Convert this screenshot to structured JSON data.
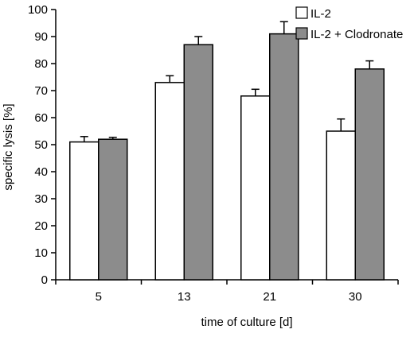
{
  "chart_data": {
    "type": "bar",
    "categories": [
      "5",
      "13",
      "21",
      "30"
    ],
    "series": [
      {
        "name": "IL-2",
        "values": [
          51,
          73,
          68,
          55
        ],
        "errors": [
          2,
          2.5,
          2.5,
          4.5
        ],
        "color": "#ffffff"
      },
      {
        "name": "IL-2 + Clodronate",
        "values": [
          52,
          87,
          91,
          78
        ],
        "errors": [
          0.7,
          3,
          4.5,
          3
        ],
        "color": "#8c8c8c"
      }
    ],
    "xlabel": "time of culture [d]",
    "ylabel": "specific lysis [%]",
    "ylim": [
      0,
      100
    ],
    "yticks": [
      "0",
      "10",
      "20",
      "30",
      "40",
      "50",
      "60",
      "70",
      "80",
      "90",
      "100"
    ],
    "legend_position": "top-right",
    "grid": false
  }
}
